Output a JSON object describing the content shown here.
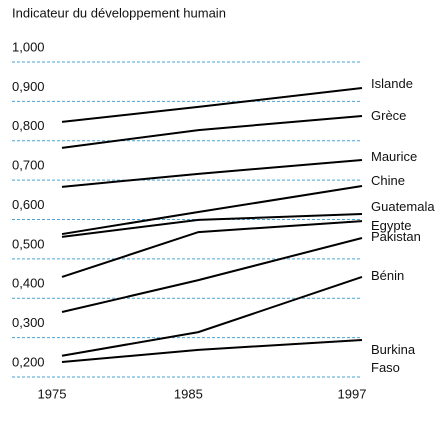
{
  "chart_data": {
    "type": "line",
    "title": "Indicateur du développement humain",
    "x": [
      1975,
      1985,
      1997
    ],
    "xlim": [
      1975,
      1997
    ],
    "xticks": [
      1975,
      1985,
      1997
    ],
    "ylim": [
      0.2,
      1.0
    ],
    "yticks": [
      {
        "value": 0.2,
        "label": "0,200"
      },
      {
        "value": 0.3,
        "label": "0,300"
      },
      {
        "value": 0.4,
        "label": "0,400"
      },
      {
        "value": 0.5,
        "label": "0,500"
      },
      {
        "value": 0.6,
        "label": "0,600"
      },
      {
        "value": 0.7,
        "label": "0,700"
      },
      {
        "value": 0.8,
        "label": "0,800"
      },
      {
        "value": 0.9,
        "label": "0,900"
      },
      {
        "value": 1.0,
        "label": "1,000"
      }
    ],
    "grid": true,
    "series": [
      {
        "name": "Islande",
        "color": "#000000",
        "values": [
          0.848,
          0.886,
          0.934
        ]
      },
      {
        "name": "Grèce",
        "color": "#000000",
        "values": [
          0.782,
          0.827,
          0.863
        ]
      },
      {
        "name": "Maurice",
        "color": "#000000",
        "values": [
          0.683,
          0.716,
          0.751
        ]
      },
      {
        "name": "Chine",
        "color": "#000000",
        "values": [
          0.563,
          0.619,
          0.685
        ]
      },
      {
        "name": "Guatemala",
        "color": "#000000",
        "values": [
          0.556,
          0.599,
          0.614
        ]
      },
      {
        "name": "Egypte",
        "color": "#000000",
        "values": [
          0.454,
          0.568,
          0.596
        ]
      },
      {
        "name": "Pakistan",
        "color": "#000000",
        "values": [
          0.365,
          0.446,
          0.553
        ]
      },
      {
        "name": "Bénin",
        "color": "#000000",
        "values": [
          0.254,
          0.314,
          0.454
        ]
      },
      {
        "name": "Burkina Faso",
        "color": "#000000",
        "values": [
          0.238,
          0.269,
          0.294
        ]
      }
    ]
  }
}
